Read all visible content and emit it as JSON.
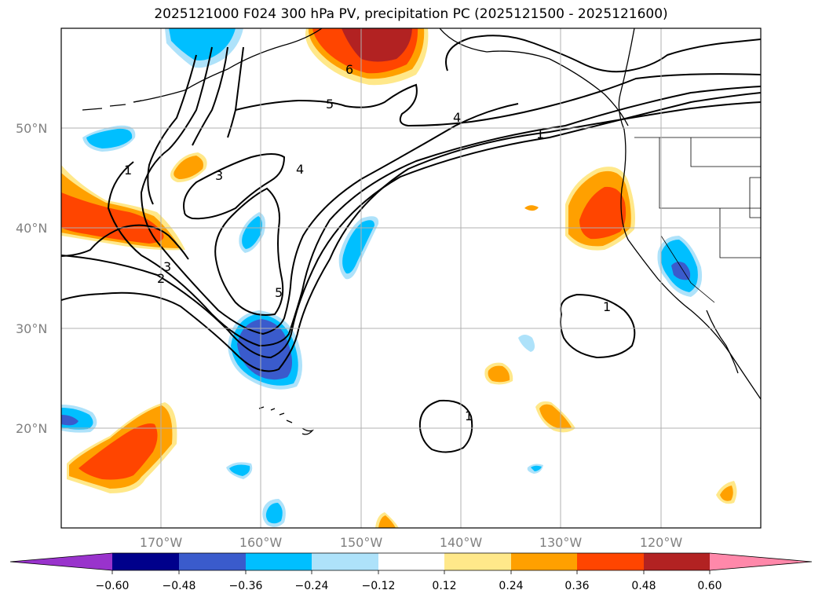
{
  "title": "2025121000 F024 300 hPa PV, precipitation PC (2025121500 - 2025121600)",
  "map": {
    "lon_labels": [
      "170°W",
      "160°W",
      "150°W",
      "140°W",
      "130°W",
      "120°W"
    ],
    "lat_labels": [
      "50°N",
      "40°N",
      "30°N",
      "20°N"
    ],
    "pv_contour_labels": [
      "1",
      "1",
      "1",
      "1",
      "1",
      "2",
      "3",
      "3",
      "4",
      "4",
      "5",
      "5",
      "6"
    ]
  },
  "colorbar": {
    "colors": [
      "#9933cc",
      "#00008b",
      "#3a5bcc",
      "#00bfff",
      "#aee2fa",
      "#ffffff",
      "#ffe88a",
      "#ffa000",
      "#ff4500",
      "#b22222",
      "#ff88aa"
    ],
    "tick_labels": [
      "−0.60",
      "−0.48",
      "−0.36",
      "−0.24",
      "−0.12",
      "0.12",
      "0.24",
      "0.36",
      "0.48",
      "0.60"
    ]
  }
}
